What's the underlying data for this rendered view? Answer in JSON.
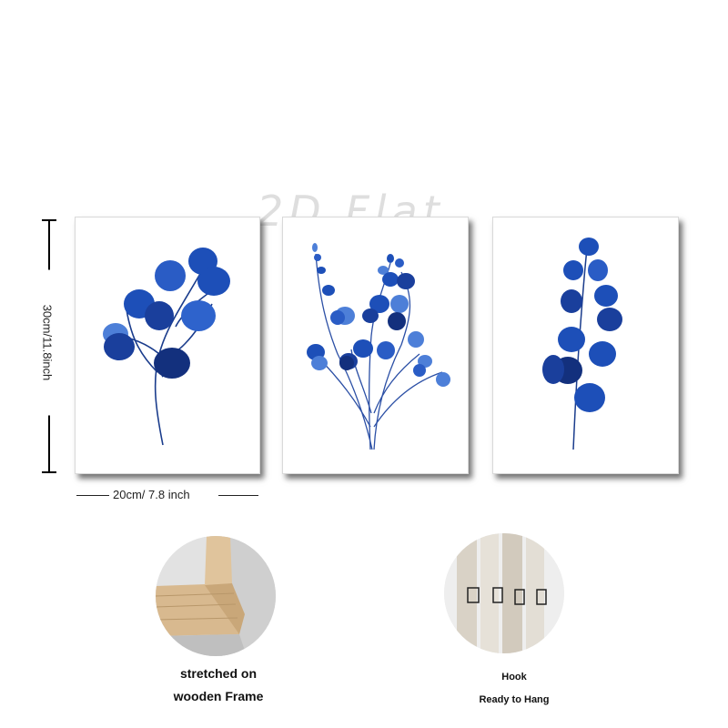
{
  "watermark": "2D Flat",
  "dimensions": {
    "height_label": "30cm/11.8inch",
    "width_label": "20cm/ 7.8 inch"
  },
  "panels": [
    {
      "subject": "blue eucalyptus branch with round leaves"
    },
    {
      "subject": "blue eucalyptus bouquet with small leaves"
    },
    {
      "subject": "blue eucalyptus stem with paired leaves"
    }
  ],
  "features": {
    "frame": {
      "line1": "stretched on",
      "line2": "wooden Frame"
    },
    "hook": {
      "line1": "Hook",
      "line2": "Ready to Hang"
    }
  },
  "colors": {
    "leaf_dark": "#0f2f7a",
    "leaf_mid": "#1d4fb8",
    "leaf_light": "#4d7fd8",
    "wood": "#d8b98f"
  }
}
